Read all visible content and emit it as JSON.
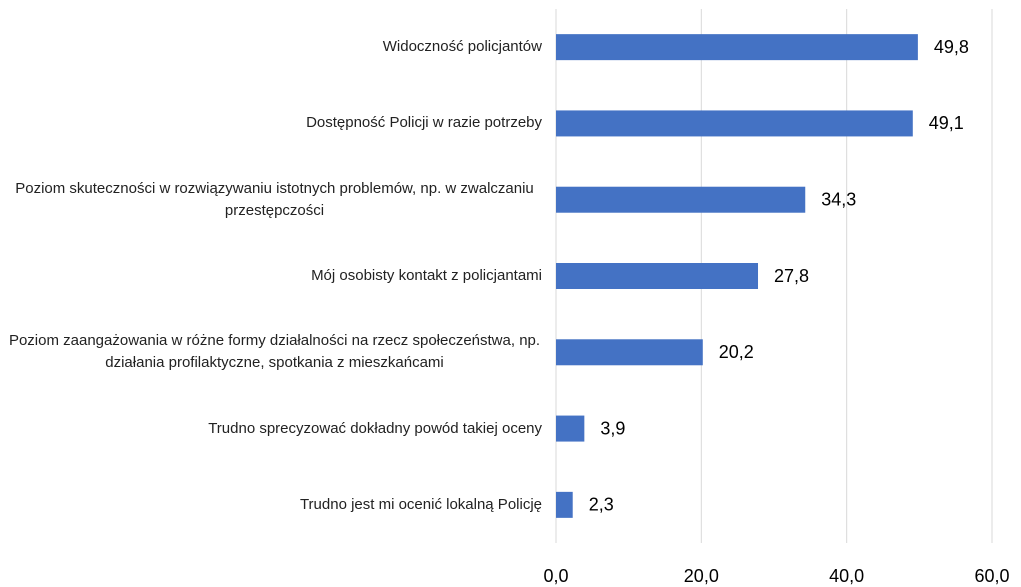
{
  "chart_data": {
    "type": "bar_horizontal",
    "categories": [
      "Widoczność policjantów",
      "Dostępność Policji w razie potrzeby",
      "Poziom skuteczności w rozwiązywaniu istotnych problemów, np. w zwalczaniu przestępczości",
      "Mój osobisty kontakt z policjantami",
      "Poziom zaangażowania w różne formy działalności na rzecz społeczeństwa, np. działania profilaktyczne, spotkania z mieszkańcami",
      "Trudno sprecyzować dokładny powód takiej oceny",
      "Trudno jest mi ocenić lokalną Policję"
    ],
    "values": [
      49.8,
      49.1,
      34.3,
      27.8,
      20.2,
      3.9,
      2.3
    ],
    "value_labels": [
      "49,8",
      "49,1",
      "34,3",
      "27,8",
      "20,2",
      "3,9",
      "2,3"
    ],
    "color": "#4472c4",
    "xlim": [
      0,
      60
    ],
    "xticks": [
      {
        "value": 0,
        "label": "0,0"
      },
      {
        "value": 20,
        "label": "20,0"
      },
      {
        "value": 40,
        "label": "40,0"
      },
      {
        "value": 60,
        "label": "60,0"
      }
    ],
    "grid": true
  }
}
